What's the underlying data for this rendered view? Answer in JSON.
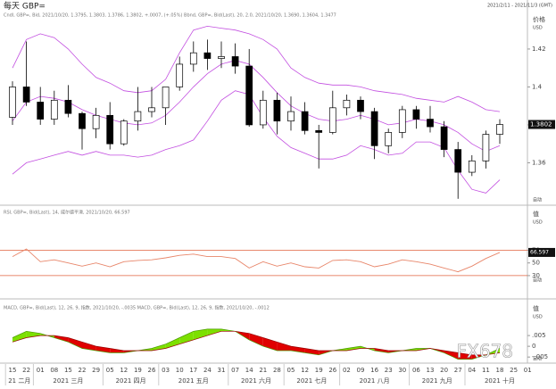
{
  "chart_data": [
    {
      "type": "candlestick",
      "title": "每天 GBP=",
      "subtitle": "2021/2/11 - 2021/11/3 (GMT)",
      "info": "Cndl, GBP=, Bid, 2021/10/20, 1.3795, 1.3803, 1.3786, 1.3802, +.0007, (+.05%)   Bbnd, GBP=, Bid(Last), 20, 2.0, 2021/10/20, 1.3690, 1.3604, 1.3477",
      "axis_title": "价格",
      "axis_unit": "USD",
      "scale_mode": "自动",
      "watermark": "FX678",
      "categories": [
        "15",
        "22",
        "01",
        "08",
        "15",
        "22",
        "29",
        "05",
        "12",
        "19",
        "26",
        "03",
        "10",
        "17",
        "24",
        "31",
        "07",
        "14",
        "21",
        "28",
        "05",
        "12",
        "19",
        "26",
        "02",
        "09",
        "16",
        "23",
        "30",
        "06",
        "13",
        "20",
        "27",
        "04",
        "11",
        "18",
        "25",
        "01"
      ],
      "x_groups": [
        "21 二月",
        "2021 三月",
        "2021 四月",
        "2021 五月",
        "2021 六月",
        "2021 七月",
        "2021 八月",
        "2021 九月",
        "2021 十月"
      ],
      "open": [
        1.384,
        1.4,
        1.392,
        1.383,
        1.393,
        1.386,
        1.378,
        1.385,
        1.37,
        1.382,
        1.387,
        1.389,
        1.4,
        1.412,
        1.418,
        1.415,
        1.416,
        1.411,
        1.38,
        1.393,
        1.382,
        1.387,
        1.377,
        1.376,
        1.389,
        1.393,
        1.387,
        1.369,
        1.376,
        1.388,
        1.383,
        1.379,
        1.367,
        1.355,
        1.361,
        1.375,
        null,
        null
      ],
      "high": [
        1.403,
        1.424,
        1.4,
        1.398,
        1.401,
        1.387,
        1.389,
        1.392,
        1.383,
        1.4,
        1.4,
        1.4,
        1.416,
        1.424,
        1.425,
        1.424,
        1.423,
        1.42,
        1.398,
        1.397,
        1.395,
        1.392,
        1.38,
        1.398,
        1.396,
        1.395,
        1.389,
        1.378,
        1.39,
        1.39,
        1.39,
        1.382,
        1.371,
        1.364,
        1.377,
        1.383,
        null,
        null
      ],
      "low": [
        1.38,
        1.39,
        1.38,
        1.38,
        1.384,
        1.367,
        1.373,
        1.367,
        1.369,
        1.377,
        1.384,
        1.38,
        1.398,
        1.408,
        1.409,
        1.41,
        1.407,
        1.379,
        1.378,
        1.375,
        1.377,
        1.375,
        1.357,
        1.375,
        1.385,
        1.383,
        1.362,
        1.365,
        1.373,
        1.378,
        1.376,
        1.363,
        1.341,
        1.353,
        1.357,
        1.37,
        null,
        null
      ],
      "close": [
        1.4,
        1.392,
        1.383,
        1.393,
        1.386,
        1.378,
        1.385,
        1.37,
        1.382,
        1.387,
        1.389,
        1.4,
        1.412,
        1.418,
        1.415,
        1.416,
        1.411,
        1.38,
        1.393,
        1.382,
        1.387,
        1.377,
        1.376,
        1.389,
        1.393,
        1.387,
        1.369,
        1.376,
        1.388,
        1.383,
        1.379,
        1.367,
        1.355,
        1.361,
        1.375,
        1.3802,
        null,
        null
      ],
      "up_color": "#ffffff",
      "down_color": "#000000",
      "bands": {
        "color": "#c24ee0",
        "upper": [
          1.41,
          1.425,
          1.428,
          1.426,
          1.42,
          1.412,
          1.405,
          1.402,
          1.398,
          1.397,
          1.398,
          1.404,
          1.418,
          1.43,
          1.432,
          1.431,
          1.43,
          1.428,
          1.425,
          1.42,
          1.41,
          1.405,
          1.402,
          1.401,
          1.401,
          1.4,
          1.398,
          1.397,
          1.396,
          1.394,
          1.393,
          1.392,
          1.395,
          1.392,
          1.388,
          1.387,
          null,
          null
        ],
        "middle": [
          1.382,
          1.392,
          1.395,
          1.394,
          1.392,
          1.388,
          1.385,
          1.383,
          1.381,
          1.38,
          1.381,
          1.385,
          1.392,
          1.4,
          1.407,
          1.412,
          1.414,
          1.412,
          1.405,
          1.397,
          1.39,
          1.386,
          1.383,
          1.382,
          1.383,
          1.385,
          1.383,
          1.38,
          1.381,
          1.383,
          1.382,
          1.38,
          1.376,
          1.37,
          1.366,
          1.369,
          null,
          null
        ],
        "lower": [
          1.354,
          1.36,
          1.362,
          1.364,
          1.366,
          1.364,
          1.366,
          1.364,
          1.364,
          1.363,
          1.364,
          1.367,
          1.369,
          1.372,
          1.382,
          1.393,
          1.398,
          1.396,
          1.384,
          1.374,
          1.368,
          1.365,
          1.362,
          1.362,
          1.364,
          1.369,
          1.367,
          1.364,
          1.365,
          1.371,
          1.371,
          1.368,
          1.356,
          1.346,
          1.344,
          1.351,
          null,
          null
        ]
      },
      "ylim": [
        1.3395,
        1.4355
      ],
      "yticks": [
        1.36,
        1.38,
        1.4,
        1.42
      ]
    },
    {
      "type": "line",
      "info": "RSI, GBP=, Bid(Last), 14, 威尔德平滑, 2021/10/20, 66.597",
      "axis_title": "值",
      "axis_unit": "USD",
      "scale_mode": "自动",
      "color": "#e8866a",
      "level_color": "#e0603c",
      "values": [
        60,
        72,
        52,
        55,
        50,
        45,
        50,
        44,
        52,
        54,
        55,
        58,
        62,
        64,
        60,
        60,
        57,
        42,
        52,
        45,
        50,
        44,
        42,
        54,
        55,
        52,
        44,
        48,
        55,
        52,
        48,
        42,
        36,
        45,
        57,
        66.597,
        null,
        null
      ],
      "levels": [
        30,
        70
      ],
      "ylim": [
        20,
        113
      ],
      "yticks": [
        30,
        50,
        70
      ]
    },
    {
      "type": "macd",
      "info": "MACD, GBP=, Bid(Last), 12, 26, 9, 指数, 2021/10/20, -.0035   MACD, GBP=, Bid(Last), 12, 26, 9, 指数, 2021/10/20, -.0012",
      "axis_title": "值",
      "axis_unit": "USD",
      "scale_mode": "自动",
      "up_color": "#7de000",
      "down_color": "#e00000",
      "macd": [
        0.004,
        0.007,
        0.006,
        0.004,
        0.002,
        -0.001,
        -0.002,
        -0.003,
        -0.003,
        -0.002,
        -0.001,
        0.001,
        0.004,
        0.007,
        0.008,
        0.008,
        0.007,
        0.003,
        0.0,
        -0.002,
        -0.002,
        -0.003,
        -0.004,
        -0.002,
        -0.001,
        0.0,
        -0.002,
        -0.003,
        -0.002,
        -0.001,
        -0.001,
        -0.003,
        -0.006,
        -0.006,
        -0.004,
        -0.001,
        null,
        null
      ],
      "signal": [
        0.002,
        0.004,
        0.005,
        0.005,
        0.004,
        0.002,
        0.0,
        -0.001,
        -0.002,
        -0.002,
        -0.002,
        -0.001,
        0.001,
        0.003,
        0.005,
        0.007,
        0.007,
        0.006,
        0.004,
        0.002,
        0.0,
        -0.001,
        -0.002,
        -0.002,
        -0.002,
        -0.001,
        -0.001,
        -0.002,
        -0.002,
        -0.002,
        -0.001,
        -0.002,
        -0.003,
        -0.004,
        -0.004,
        -0.003,
        null,
        null
      ],
      "ylim": [
        -0.007,
        0.015
      ],
      "yticks": [
        {
          "value": -0.005,
          "label": "-.005"
        },
        0,
        {
          "value": 0.005,
          "label": ".005"
        }
      ]
    }
  ]
}
